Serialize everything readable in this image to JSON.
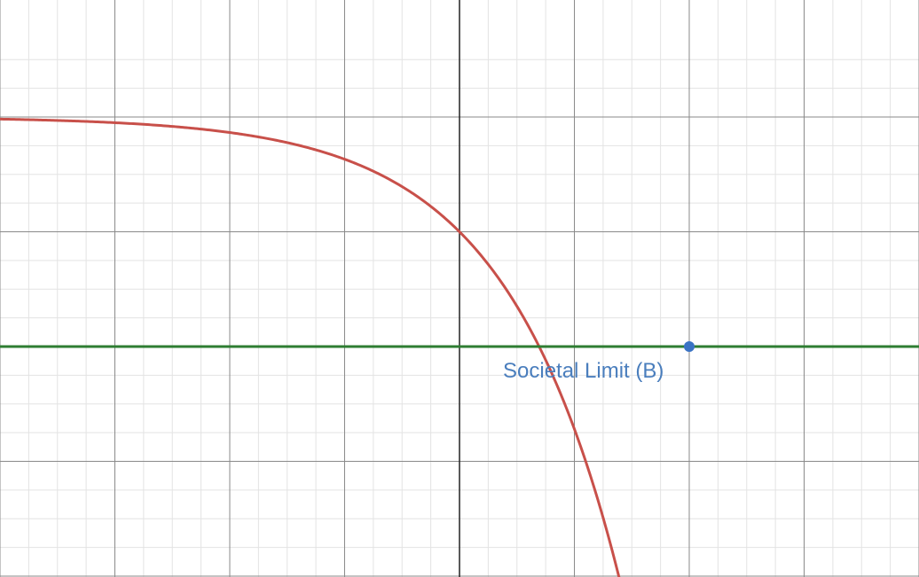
{
  "chart_data": {
    "type": "line",
    "title": "",
    "xlabel": "",
    "ylabel": "",
    "xlim": [
      -4,
      4
    ],
    "ylim": [
      -2,
      2.5
    ],
    "grid": true,
    "tick_labels_shown": false,
    "series": [
      {
        "function": "2 - e^x",
        "color": "#c8504a"
      },
      {
        "function": "y = 0",
        "color": "#2e7d32"
      }
    ],
    "points": [
      {
        "label": "Societal Limit (B)",
        "x": 2,
        "y": 0,
        "color": "#3a73c4"
      }
    ]
  }
}
